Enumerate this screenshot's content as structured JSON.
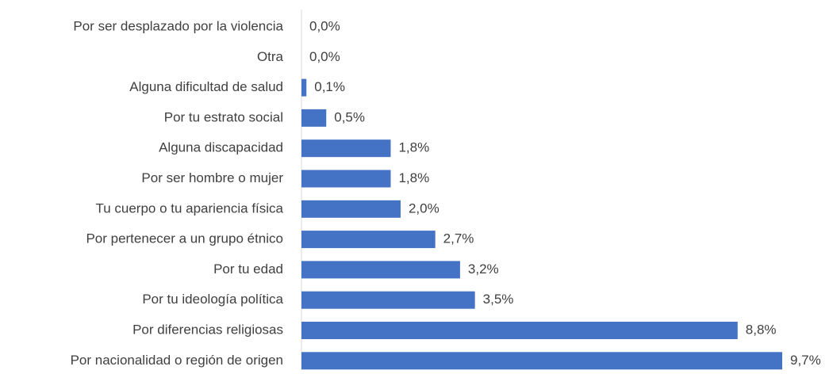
{
  "chart_data": {
    "type": "hbar",
    "categories": [
      "Por ser desplazado por la violencia",
      "Otra",
      "Alguna dificultad de salud",
      "Por tu estrato social",
      "Alguna discapacidad",
      "Por ser hombre o mujer",
      "Tu cuerpo o tu apariencia física",
      "Por pertenecer a un grupo étnico",
      "Por tu edad",
      "Por tu ideología política",
      "Por diferencias religiosas",
      "Por nacionalidad o región de origen"
    ],
    "values": [
      0.0,
      0.0,
      0.1,
      0.5,
      1.8,
      1.8,
      2.0,
      2.7,
      3.2,
      3.5,
      8.8,
      9.7
    ],
    "value_labels": [
      "0,0%",
      "0,0%",
      "0,1%",
      "0,5%",
      "1,8%",
      "1,8%",
      "2,0%",
      "2,7%",
      "3,2%",
      "3,5%",
      "8,8%",
      "9,7%"
    ],
    "color": "#4472c4"
  }
}
